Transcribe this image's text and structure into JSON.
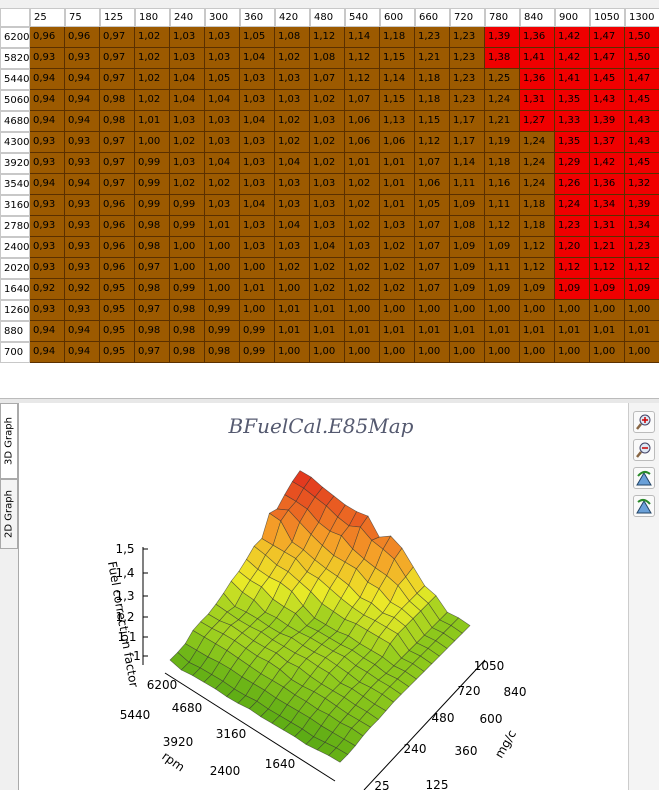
{
  "table": {
    "columns": [
      "25",
      "75",
      "125",
      "180",
      "240",
      "300",
      "360",
      "420",
      "480",
      "540",
      "600",
      "660",
      "720",
      "780",
      "840",
      "900",
      "1050",
      "1300"
    ],
    "rows": [
      {
        "label": "6200",
        "cells": [
          "0,96",
          "0,96",
          "0,97",
          "1,02",
          "1,03",
          "1,03",
          "1,05",
          "1,08",
          "1,12",
          "1,14",
          "1,18",
          "1,23",
          "1,23",
          "1,39",
          "1,36",
          "1,42",
          "1,47",
          "1,50"
        ]
      },
      {
        "label": "5820",
        "cells": [
          "0,93",
          "0,93",
          "0,97",
          "1,02",
          "1,03",
          "1,03",
          "1,04",
          "1,02",
          "1,08",
          "1,12",
          "1,15",
          "1,21",
          "1,23",
          "1,38",
          "1,41",
          "1,42",
          "1,47",
          "1,50"
        ]
      },
      {
        "label": "5440",
        "cells": [
          "0,94",
          "0,94",
          "0,97",
          "1,02",
          "1,04",
          "1,05",
          "1,03",
          "1,03",
          "1,07",
          "1,12",
          "1,14",
          "1,18",
          "1,23",
          "1,25",
          "1,36",
          "1,41",
          "1,45",
          "1,47"
        ]
      },
      {
        "label": "5060",
        "cells": [
          "0,94",
          "0,94",
          "0,98",
          "1,02",
          "1,04",
          "1,04",
          "1,03",
          "1,03",
          "1,02",
          "1,07",
          "1,15",
          "1,18",
          "1,23",
          "1,24",
          "1,31",
          "1,35",
          "1,43",
          "1,45"
        ]
      },
      {
        "label": "4680",
        "cells": [
          "0,94",
          "0,94",
          "0,98",
          "1,01",
          "1,03",
          "1,03",
          "1,04",
          "1,02",
          "1,03",
          "1,06",
          "1,13",
          "1,15",
          "1,17",
          "1,21",
          "1,27",
          "1,33",
          "1,39",
          "1,43"
        ]
      },
      {
        "label": "4300",
        "cells": [
          "0,93",
          "0,93",
          "0,97",
          "1,00",
          "1,02",
          "1,03",
          "1,03",
          "1,02",
          "1,02",
          "1,06",
          "1,06",
          "1,12",
          "1,17",
          "1,19",
          "1,24",
          "1,35",
          "1,37",
          "1,43"
        ]
      },
      {
        "label": "3920",
        "cells": [
          "0,93",
          "0,93",
          "0,97",
          "0,99",
          "1,03",
          "1,04",
          "1,03",
          "1,04",
          "1,02",
          "1,01",
          "1,01",
          "1,07",
          "1,14",
          "1,18",
          "1,24",
          "1,29",
          "1,42",
          "1,45"
        ]
      },
      {
        "label": "3540",
        "cells": [
          "0,94",
          "0,94",
          "0,97",
          "0,99",
          "1,02",
          "1,02",
          "1,03",
          "1,03",
          "1,03",
          "1,02",
          "1,01",
          "1,06",
          "1,11",
          "1,16",
          "1,24",
          "1,26",
          "1,36",
          "1,32"
        ]
      },
      {
        "label": "3160",
        "cells": [
          "0,93",
          "0,93",
          "0,96",
          "0,99",
          "0,99",
          "1,03",
          "1,04",
          "1,03",
          "1,03",
          "1,02",
          "1,01",
          "1,05",
          "1,09",
          "1,11",
          "1,18",
          "1,24",
          "1,34",
          "1,39"
        ]
      },
      {
        "label": "2780",
        "cells": [
          "0,93",
          "0,93",
          "0,96",
          "0,98",
          "0,99",
          "1,01",
          "1,03",
          "1,04",
          "1,03",
          "1,02",
          "1,03",
          "1,07",
          "1,08",
          "1,12",
          "1,18",
          "1,23",
          "1,31",
          "1,34"
        ]
      },
      {
        "label": "2400",
        "cells": [
          "0,93",
          "0,93",
          "0,96",
          "0,98",
          "1,00",
          "1,00",
          "1,03",
          "1,03",
          "1,04",
          "1,03",
          "1,02",
          "1,07",
          "1,09",
          "1,09",
          "1,12",
          "1,20",
          "1,21",
          "1,23"
        ]
      },
      {
        "label": "2020",
        "cells": [
          "0,93",
          "0,93",
          "0,96",
          "0,97",
          "1,00",
          "1,00",
          "1,00",
          "1,02",
          "1,02",
          "1,02",
          "1,02",
          "1,07",
          "1,09",
          "1,11",
          "1,12",
          "1,12",
          "1,12",
          "1,12"
        ]
      },
      {
        "label": "1640",
        "cells": [
          "0,92",
          "0,92",
          "0,95",
          "0,98",
          "0,99",
          "1,00",
          "1,01",
          "1,00",
          "1,02",
          "1,02",
          "1,02",
          "1,07",
          "1,09",
          "1,09",
          "1,09",
          "1,09",
          "1,09",
          "1,09"
        ]
      },
      {
        "label": "1260",
        "cells": [
          "0,93",
          "0,93",
          "0,95",
          "0,97",
          "0,98",
          "0,99",
          "1,00",
          "1,01",
          "1,01",
          "1,00",
          "1,00",
          "1,00",
          "1,00",
          "1,00",
          "1,00",
          "1,00",
          "1,00",
          "1,00"
        ]
      },
      {
        "label": "880",
        "cells": [
          "0,94",
          "0,94",
          "0,95",
          "0,98",
          "0,98",
          "0,99",
          "0,99",
          "1,01",
          "1,01",
          "1,01",
          "1,01",
          "1,01",
          "1,01",
          "1,01",
          "1,01",
          "1,01",
          "1,01",
          "1,01"
        ]
      },
      {
        "label": "700",
        "cells": [
          "0,94",
          "0,94",
          "0,95",
          "0,97",
          "0,98",
          "0,98",
          "0,99",
          "1,00",
          "1,00",
          "1,00",
          "1,00",
          "1,00",
          "1,00",
          "1,00",
          "1,00",
          "1,00",
          "1,00",
          "1,00"
        ]
      }
    ]
  },
  "graph": {
    "tabs": [
      "3D Graph",
      "2D Graph"
    ],
    "title": "BFuelCal.E85Map",
    "z_axis": {
      "label": "Fuel correction factor",
      "ticks": [
        "1,5",
        "1,4",
        "1,3",
        "1,2",
        "1,1",
        "1"
      ]
    },
    "rpm_axis": {
      "label": "rpm",
      "ticks": [
        "6200",
        "5440",
        "4680",
        "3920",
        "3160",
        "2400",
        "1640"
      ]
    },
    "mgc_axis": {
      "label": "mg/c",
      "ticks": [
        "1050",
        "840",
        "720",
        "600",
        "480",
        "360",
        "240",
        "125",
        "25"
      ]
    }
  }
}
